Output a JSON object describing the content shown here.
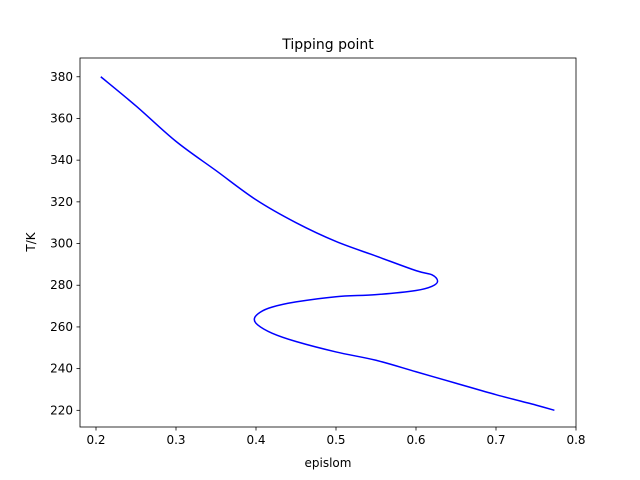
{
  "chart_data": {
    "type": "line",
    "title": "Tipping point",
    "xlabel": "epislom",
    "ylabel": "T/K",
    "xlim": [
      0.18,
      0.8
    ],
    "ylim": [
      212,
      389
    ],
    "xticks": [
      0.2,
      0.3,
      0.4,
      0.5,
      0.6,
      0.7,
      0.8
    ],
    "xtick_labels": [
      "0.2",
      "0.3",
      "0.4",
      "0.5",
      "0.6",
      "0.7",
      "0.8"
    ],
    "yticks": [
      220,
      240,
      260,
      280,
      300,
      320,
      340,
      360,
      380
    ],
    "ytick_labels": [
      "220",
      "240",
      "260",
      "280",
      "300",
      "320",
      "340",
      "360",
      "380"
    ],
    "grid": false,
    "series": [
      {
        "color": "#0000ff",
        "points": [
          [
            0.206,
            380
          ],
          [
            0.25,
            366
          ],
          [
            0.3,
            349
          ],
          [
            0.35,
            335
          ],
          [
            0.4,
            321
          ],
          [
            0.45,
            310
          ],
          [
            0.5,
            301
          ],
          [
            0.55,
            294
          ],
          [
            0.6,
            287
          ],
          [
            0.62,
            285
          ],
          [
            0.627,
            282
          ],
          [
            0.62,
            279.5
          ],
          [
            0.6,
            277.5
          ],
          [
            0.55,
            275.5
          ],
          [
            0.5,
            274.5
          ],
          [
            0.45,
            272
          ],
          [
            0.42,
            269.5
          ],
          [
            0.405,
            267
          ],
          [
            0.398,
            264
          ],
          [
            0.402,
            261
          ],
          [
            0.42,
            257
          ],
          [
            0.45,
            253
          ],
          [
            0.5,
            248
          ],
          [
            0.55,
            244
          ],
          [
            0.6,
            238.5
          ],
          [
            0.65,
            233
          ],
          [
            0.7,
            227.5
          ],
          [
            0.75,
            222.5
          ],
          [
            0.773,
            220
          ]
        ]
      }
    ]
  }
}
